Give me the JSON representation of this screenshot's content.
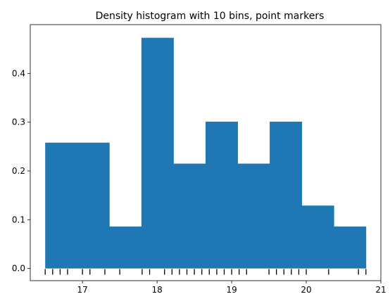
{
  "chart_data": {
    "type": "bar",
    "title": "Density histogram with 10 bins, point markers",
    "xlabel": "",
    "ylabel": "",
    "xlim": [
      16.3,
      21.0
    ],
    "ylim": [
      -0.025,
      0.5
    ],
    "x_ticks": [
      17,
      18,
      19,
      20,
      21
    ],
    "y_ticks": [
      0.0,
      0.1,
      0.2,
      0.3,
      0.4
    ],
    "x_tick_labels": [
      "17",
      "18",
      "19",
      "20",
      "21"
    ],
    "y_tick_labels": [
      "0.0",
      "0.1",
      "0.2",
      "0.3",
      "0.4"
    ],
    "grid": false,
    "bar_color": "#1f77b4",
    "bins": [
      {
        "x0": 16.5,
        "x1": 16.93,
        "density": 0.258
      },
      {
        "x0": 16.93,
        "x1": 17.36,
        "density": 0.258
      },
      {
        "x0": 17.36,
        "x1": 17.79,
        "density": 0.086
      },
      {
        "x0": 17.79,
        "x1": 18.22,
        "density": 0.473
      },
      {
        "x0": 18.22,
        "x1": 18.65,
        "density": 0.215
      },
      {
        "x0": 18.65,
        "x1": 19.08,
        "density": 0.301
      },
      {
        "x0": 19.08,
        "x1": 19.51,
        "density": 0.215
      },
      {
        "x0": 19.51,
        "x1": 19.94,
        "density": 0.301
      },
      {
        "x0": 19.94,
        "x1": 20.37,
        "density": 0.129
      },
      {
        "x0": 20.37,
        "x1": 20.8,
        "density": 0.086
      }
    ],
    "points": [
      16.5,
      16.6,
      16.7,
      16.8,
      17.0,
      17.1,
      17.3,
      17.5,
      17.8,
      17.9,
      18.1,
      18.2,
      18.3,
      18.4,
      18.5,
      18.6,
      18.7,
      18.8,
      18.9,
      19.0,
      19.1,
      19.2,
      19.5,
      19.6,
      19.7,
      19.8,
      19.9,
      20.0,
      20.3,
      20.7,
      20.8
    ],
    "marker_color": "#000000",
    "marker_y": -0.007
  }
}
